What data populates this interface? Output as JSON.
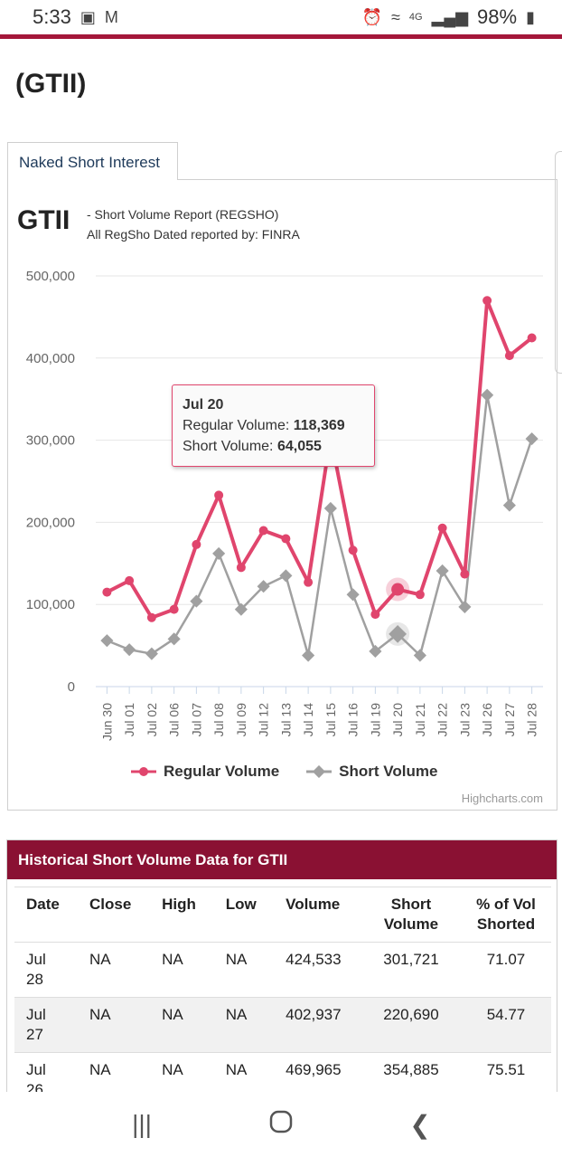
{
  "status_bar": {
    "time": "5:33",
    "network": "4G",
    "battery": "98%"
  },
  "page": {
    "ticker_title": "(GTII)"
  },
  "tab": {
    "label": "Naked Short Interest"
  },
  "chart_header": {
    "ticker": "GTII",
    "subtitle_1": "- Short Volume Report  (REGSHO)",
    "subtitle_2": "All RegSho Dated reported by: FINRA"
  },
  "chart_data": {
    "type": "line",
    "categories": [
      "Jun 30",
      "Jul 01",
      "Jul 02",
      "Jul 06",
      "Jul 07",
      "Jul 08",
      "Jul 09",
      "Jul 12",
      "Jul 13",
      "Jul 14",
      "Jul 15",
      "Jul 16",
      "Jul 19",
      "Jul 20",
      "Jul 21",
      "Jul 22",
      "Jul 23",
      "Jul 26",
      "Jul 27",
      "Jul 28"
    ],
    "series": [
      {
        "name": "Regular Volume",
        "color": "#e0456d",
        "values": [
          115000,
          129000,
          84000,
          94000,
          173000,
          233000,
          145000,
          190000,
          180000,
          127000,
          305000,
          166000,
          88000,
          118369,
          112000,
          193000,
          137000,
          469965,
          402937,
          424533
        ]
      },
      {
        "name": "Short Volume",
        "color": "#a0a0a0",
        "values": [
          56000,
          45000,
          40000,
          58000,
          104000,
          162000,
          94000,
          122000,
          135000,
          38000,
          217000,
          112000,
          43000,
          64055,
          38000,
          141000,
          97000,
          354885,
          220690,
          301721
        ]
      }
    ],
    "ylim": [
      0,
      500000
    ],
    "yticks": [
      "0",
      "100,000",
      "200,000",
      "300,000",
      "400,000",
      "500,000"
    ],
    "legend": "bottom-center",
    "grid": true,
    "tooltip": {
      "category": "Jul 20",
      "regular_label": "Regular Volume: ",
      "regular_value": "118,369",
      "short_label": "Short Volume: ",
      "short_value": "64,055",
      "index": 13
    },
    "credits": "Highcharts.com"
  },
  "history": {
    "title": "Historical Short Volume Data for GTII",
    "headers": [
      "Date",
      "Close",
      "High",
      "Low",
      "Volume",
      "Short Volume",
      "% of Vol Shorted"
    ],
    "rows": [
      [
        "Jul 28",
        "NA",
        "NA",
        "NA",
        "424,533",
        "301,721",
        "71.07"
      ],
      [
        "Jul 27",
        "NA",
        "NA",
        "NA",
        "402,937",
        "220,690",
        "54.77"
      ],
      [
        "Jul 26",
        "NA",
        "NA",
        "NA",
        "469,965",
        "354,885",
        "75.51"
      ]
    ]
  },
  "nav": {
    "recents_icon": "recents-icon",
    "home_icon": "home-icon",
    "back_icon": "back-icon"
  }
}
